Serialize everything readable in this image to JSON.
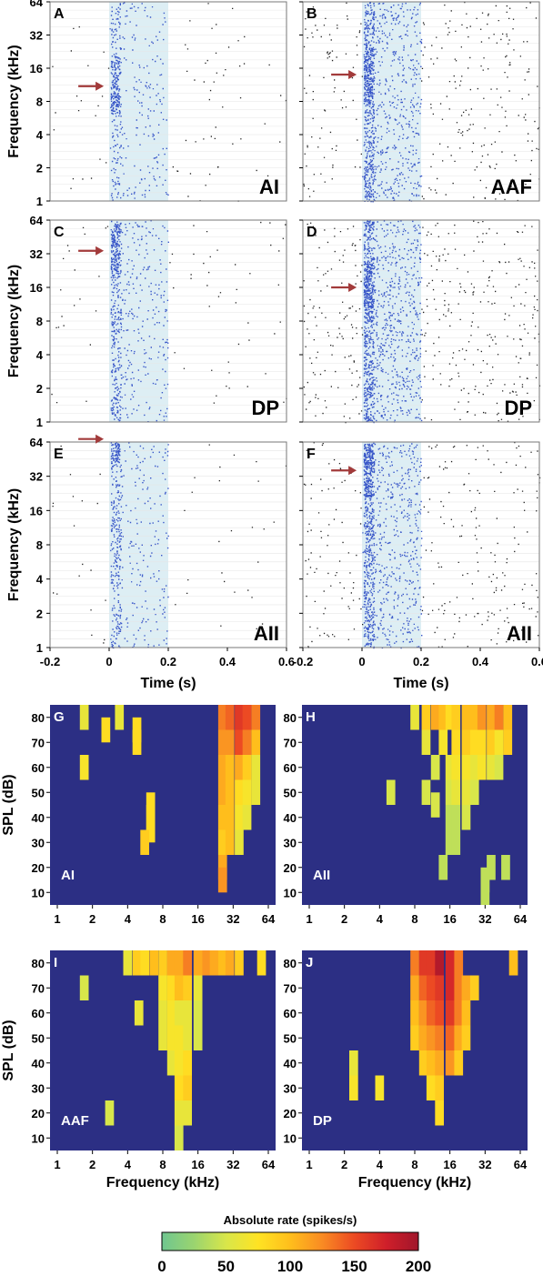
{
  "raster": {
    "freq_axis_label": "Frequency (kHz)",
    "time_axis_label": "Time (s)",
    "freq_ticks": [
      "1",
      "2",
      "4",
      "8",
      "16",
      "32",
      "64"
    ],
    "time_ticks": [
      "-0.2",
      "0",
      "0.2",
      "0.4",
      "0.6"
    ],
    "panels": [
      {
        "letter": "A",
        "area": "AI"
      },
      {
        "letter": "B",
        "area": "AAF"
      },
      {
        "letter": "C",
        "area": "DP"
      },
      {
        "letter": "D",
        "area": "DP"
      },
      {
        "letter": "E",
        "area": "AII"
      },
      {
        "letter": "F",
        "area": "AII"
      }
    ]
  },
  "fra": {
    "spl_axis_label": "SPL (dB)",
    "freq_axis_label": "Frequency (kHz)",
    "spl_ticks": [
      "80",
      "70",
      "60",
      "50",
      "40",
      "30",
      "20",
      "10"
    ],
    "freq_ticks": [
      "1",
      "2",
      "4",
      "8",
      "16",
      "32",
      "64"
    ],
    "panels": [
      {
        "letter": "G",
        "area": "AI"
      },
      {
        "letter": "H",
        "area": "AII"
      },
      {
        "letter": "I",
        "area": "AAF"
      },
      {
        "letter": "J",
        "area": "DP"
      }
    ]
  },
  "colorbar": {
    "title": "Absolute rate (spikes/s)",
    "ticks": [
      "0",
      "50",
      "100",
      "150",
      "200"
    ],
    "colors": [
      "#6fc690",
      "#9ad46f",
      "#d8e64a",
      "#ffe323",
      "#ffbe1c",
      "#f98b23",
      "#ec4a23",
      "#cf1f2a",
      "#a0162b"
    ]
  },
  "colors": {
    "stim_shade": "#ddeef4",
    "spike_black": "#222222",
    "spike_blue": "#3856c8",
    "arrow": "#a23a3a",
    "fra_background": "#2c2f84"
  },
  "chart_data": [
    {
      "type": "scatter",
      "panel": "A",
      "area": "AI",
      "xlabel": "Time (s)",
      "ylabel": "Frequency (kHz)",
      "xlim": [
        -0.2,
        0.6
      ],
      "ylim": [
        1,
        64
      ],
      "yscale": "log2",
      "stimulus_window_s": [
        0,
        0.2
      ],
      "arrow_frequency_khz": 11
    },
    {
      "type": "scatter",
      "panel": "B",
      "area": "AAF",
      "xlabel": "Time (s)",
      "ylabel": "Frequency (kHz)",
      "xlim": [
        -0.2,
        0.6
      ],
      "ylim": [
        1,
        64
      ],
      "yscale": "log2",
      "stimulus_window_s": [
        0,
        0.2
      ],
      "arrow_frequency_khz": 14
    },
    {
      "type": "scatter",
      "panel": "C",
      "area": "DP",
      "xlabel": "Time (s)",
      "ylabel": "Frequency (kHz)",
      "xlim": [
        -0.2,
        0.6
      ],
      "ylim": [
        1,
        64
      ],
      "yscale": "log2",
      "stimulus_window_s": [
        0,
        0.2
      ],
      "arrow_frequency_khz": 34
    },
    {
      "type": "scatter",
      "panel": "D",
      "area": "DP",
      "xlabel": "Time (s)",
      "ylabel": "Frequency (kHz)",
      "xlim": [
        -0.2,
        0.6
      ],
      "ylim": [
        1,
        64
      ],
      "yscale": "log2",
      "stimulus_window_s": [
        0,
        0.2
      ],
      "arrow_frequency_khz": 16
    },
    {
      "type": "scatter",
      "panel": "E",
      "area": "AII",
      "xlabel": "Time (s)",
      "ylabel": "Frequency (kHz)",
      "xlim": [
        -0.2,
        0.6
      ],
      "ylim": [
        1,
        64
      ],
      "yscale": "log2",
      "stimulus_window_s": [
        0,
        0.2
      ],
      "arrow_frequency_khz": 68
    },
    {
      "type": "scatter",
      "panel": "F",
      "area": "AII",
      "xlabel": "Time (s)",
      "ylabel": "Frequency (kHz)",
      "xlim": [
        -0.2,
        0.6
      ],
      "ylim": [
        1,
        64
      ],
      "yscale": "log2",
      "stimulus_window_s": [
        0,
        0.2
      ],
      "arrow_frequency_khz": 36
    },
    {
      "type": "heatmap",
      "panel": "G",
      "area": "AI",
      "xlabel": "Frequency (kHz)",
      "ylabel": "SPL (dB)",
      "x_range_khz": [
        1,
        64
      ],
      "y_range_db": [
        5,
        85
      ],
      "value_label": "Absolute rate (spikes/s)",
      "value_range": [
        0,
        200
      ],
      "cells": [
        [
          1.7,
          80,
          60
        ],
        [
          3.4,
          80,
          60
        ],
        [
          2.6,
          75,
          80
        ],
        [
          4.8,
          70,
          80
        ],
        [
          4.8,
          75,
          80
        ],
        [
          1.7,
          60,
          70
        ],
        [
          6.3,
          45,
          80
        ],
        [
          6.3,
          40,
          80
        ],
        [
          6.3,
          35,
          80
        ],
        [
          5.6,
          30,
          90
        ],
        [
          26,
          80,
          130
        ],
        [
          30,
          80,
          140
        ],
        [
          36,
          80,
          160
        ],
        [
          42,
          80,
          150
        ],
        [
          50,
          80,
          130
        ],
        [
          26,
          70,
          120
        ],
        [
          30,
          70,
          120
        ],
        [
          36,
          70,
          150
        ],
        [
          42,
          70,
          130
        ],
        [
          50,
          70,
          100
        ],
        [
          26,
          60,
          110
        ],
        [
          30,
          60,
          100
        ],
        [
          36,
          60,
          110
        ],
        [
          42,
          60,
          90
        ],
        [
          50,
          60,
          60
        ],
        [
          26,
          50,
          110
        ],
        [
          30,
          50,
          100
        ],
        [
          36,
          50,
          80
        ],
        [
          42,
          50,
          70
        ],
        [
          50,
          50,
          60
        ],
        [
          26,
          40,
          100
        ],
        [
          30,
          40,
          100
        ],
        [
          36,
          40,
          70
        ],
        [
          42,
          40,
          60
        ],
        [
          26,
          30,
          90
        ],
        [
          30,
          30,
          100
        ],
        [
          36,
          30,
          60
        ],
        [
          26,
          20,
          110
        ],
        [
          26,
          15,
          120
        ]
      ]
    },
    {
      "type": "heatmap",
      "panel": "H",
      "area": "AII",
      "xlabel": "Frequency (kHz)",
      "ylabel": "SPL (dB)",
      "x_range_khz": [
        1,
        64
      ],
      "y_range_db": [
        5,
        85
      ],
      "value_label": "Absolute rate (spikes/s)",
      "value_range": [
        0,
        200
      ],
      "cells": [
        [
          8,
          80,
          60
        ],
        [
          10,
          80,
          90
        ],
        [
          12,
          80,
          110
        ],
        [
          14,
          80,
          100
        ],
        [
          16,
          80,
          80
        ],
        [
          18,
          80,
          90
        ],
        [
          22,
          80,
          100
        ],
        [
          26,
          80,
          100
        ],
        [
          30,
          80,
          120
        ],
        [
          36,
          80,
          110
        ],
        [
          42,
          80,
          130
        ],
        [
          50,
          80,
          100
        ],
        [
          10,
          70,
          60
        ],
        [
          14,
          70,
          70
        ],
        [
          18,
          70,
          80
        ],
        [
          22,
          70,
          90
        ],
        [
          26,
          70,
          80
        ],
        [
          30,
          70,
          80
        ],
        [
          36,
          70,
          90
        ],
        [
          42,
          70,
          70
        ],
        [
          50,
          70,
          90
        ],
        [
          12,
          60,
          50
        ],
        [
          16,
          60,
          60
        ],
        [
          18,
          60,
          70
        ],
        [
          22,
          60,
          70
        ],
        [
          26,
          60,
          60
        ],
        [
          30,
          60,
          70
        ],
        [
          36,
          60,
          60
        ],
        [
          42,
          60,
          50
        ],
        [
          5,
          50,
          50
        ],
        [
          10,
          50,
          50
        ],
        [
          16,
          50,
          50
        ],
        [
          18,
          50,
          60
        ],
        [
          22,
          50,
          60
        ],
        [
          26,
          50,
          50
        ],
        [
          12,
          45,
          50
        ],
        [
          16,
          40,
          40
        ],
        [
          18,
          40,
          40
        ],
        [
          22,
          40,
          50
        ],
        [
          16,
          30,
          40
        ],
        [
          18,
          30,
          40
        ],
        [
          14,
          20,
          40
        ],
        [
          48,
          20,
          40
        ],
        [
          36,
          20,
          40
        ],
        [
          32,
          15,
          40
        ],
        [
          32,
          10,
          40
        ]
      ]
    },
    {
      "type": "heatmap",
      "panel": "I",
      "area": "AAF",
      "xlabel": "Frequency (kHz)",
      "ylabel": "SPL (dB)",
      "x_range_khz": [
        1,
        64
      ],
      "y_range_db": [
        5,
        85
      ],
      "value_label": "Absolute rate (spikes/s)",
      "value_range": [
        0,
        200
      ],
      "cells": [
        [
          4,
          80,
          60
        ],
        [
          4.8,
          80,
          90
        ],
        [
          5.6,
          80,
          80
        ],
        [
          6.7,
          80,
          100
        ],
        [
          8,
          80,
          90
        ],
        [
          9.5,
          80,
          110
        ],
        [
          11,
          80,
          110
        ],
        [
          13,
          80,
          130
        ],
        [
          16,
          80,
          110
        ],
        [
          19,
          80,
          120
        ],
        [
          22,
          80,
          110
        ],
        [
          26,
          80,
          100
        ],
        [
          30,
          80,
          110
        ],
        [
          36,
          80,
          90
        ],
        [
          56,
          80,
          80
        ],
        [
          1.7,
          70,
          50
        ],
        [
          8,
          70,
          70
        ],
        [
          9.5,
          70,
          80
        ],
        [
          11,
          70,
          100
        ],
        [
          13,
          70,
          90
        ],
        [
          16,
          70,
          60
        ],
        [
          5,
          60,
          60
        ],
        [
          8,
          60,
          60
        ],
        [
          9.5,
          60,
          70
        ],
        [
          11,
          60,
          60
        ],
        [
          13,
          60,
          60
        ],
        [
          16,
          60,
          50
        ],
        [
          8,
          50,
          60
        ],
        [
          9.5,
          50,
          70
        ],
        [
          11,
          50,
          70
        ],
        [
          13,
          50,
          60
        ],
        [
          16,
          50,
          50
        ],
        [
          9.5,
          40,
          60
        ],
        [
          11,
          40,
          70
        ],
        [
          13,
          40,
          80
        ],
        [
          11,
          30,
          80
        ],
        [
          13,
          30,
          90
        ],
        [
          11,
          20,
          60
        ],
        [
          13,
          20,
          60
        ],
        [
          2.8,
          20,
          50
        ],
        [
          11,
          10,
          50
        ]
      ]
    },
    {
      "type": "heatmap",
      "panel": "J",
      "area": "DP",
      "xlabel": "Frequency (kHz)",
      "ylabel": "SPL (dB)",
      "x_range_khz": [
        1,
        64
      ],
      "y_range_db": [
        5,
        85
      ],
      "value_label": "Absolute rate (spikes/s)",
      "value_range": [
        0,
        200
      ],
      "cells": [
        [
          8,
          80,
          130
        ],
        [
          9.5,
          80,
          160
        ],
        [
          11,
          80,
          160
        ],
        [
          13,
          80,
          190
        ],
        [
          16,
          80,
          170
        ],
        [
          19,
          80,
          130
        ],
        [
          56,
          80,
          100
        ],
        [
          8,
          70,
          110
        ],
        [
          9.5,
          70,
          140
        ],
        [
          11,
          70,
          150
        ],
        [
          13,
          70,
          160
        ],
        [
          16,
          70,
          170
        ],
        [
          19,
          70,
          130
        ],
        [
          22,
          70,
          110
        ],
        [
          26,
          70,
          90
        ],
        [
          8,
          60,
          100
        ],
        [
          9.5,
          60,
          120
        ],
        [
          11,
          60,
          140
        ],
        [
          13,
          60,
          150
        ],
        [
          16,
          60,
          160
        ],
        [
          19,
          60,
          130
        ],
        [
          22,
          60,
          100
        ],
        [
          8,
          50,
          90
        ],
        [
          9.5,
          50,
          110
        ],
        [
          11,
          50,
          120
        ],
        [
          13,
          50,
          130
        ],
        [
          16,
          50,
          140
        ],
        [
          19,
          50,
          110
        ],
        [
          22,
          50,
          90
        ],
        [
          9.5,
          40,
          90
        ],
        [
          11,
          40,
          100
        ],
        [
          13,
          40,
          110
        ],
        [
          16,
          40,
          120
        ],
        [
          19,
          40,
          90
        ],
        [
          11,
          30,
          80
        ],
        [
          13,
          30,
          90
        ],
        [
          2.4,
          30,
          70
        ],
        [
          4,
          30,
          70
        ],
        [
          13,
          20,
          80
        ],
        [
          2.4,
          40,
          60
        ]
      ]
    }
  ]
}
